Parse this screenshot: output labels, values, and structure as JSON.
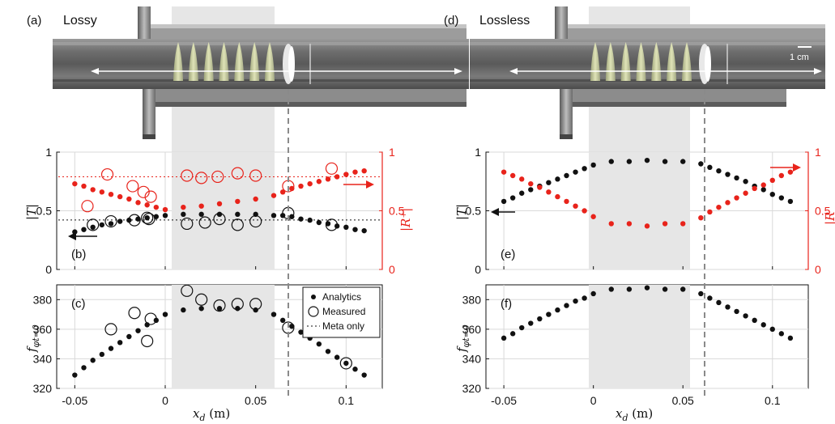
{
  "colors": {
    "black": "#111111",
    "red": "#e8231b",
    "shade": "#e6e6e6",
    "grid": "#d9d9d9"
  },
  "labels": {
    "a": "(a)",
    "b": "(b)",
    "c": "(c)",
    "d": "(d)",
    "e": "(e)",
    "f": "(f)",
    "lossy": "Lossy",
    "lossless": "Lossless",
    "scale_bar": "1 cm"
  },
  "axes": {
    "xlabel": "x_d (m)",
    "T": "|T|",
    "R_lossy": "|R⁺|",
    "R_lossless": "|R",
    "f": "f_{φt=0}"
  },
  "legend": {
    "analytics": "Analytics",
    "measured": "Measured",
    "meta": "Meta only"
  },
  "chart_data": [
    {
      "panel": "(b)",
      "type": "scatter",
      "xlim": [
        -0.06,
        0.12
      ],
      "ylim_left": [
        0,
        1
      ],
      "ylim_right": [
        0,
        1
      ],
      "xticks": [
        -0.05,
        0,
        0.05,
        0.1
      ],
      "yticks_left": [
        0,
        0.5,
        1
      ],
      "yticks_right": [
        0,
        0.5,
        1
      ],
      "shaded_x": [
        0,
        0.06
      ],
      "dashed_x": 0.068,
      "meta_T": 0.42,
      "meta_R": 0.79,
      "series": [
        {
          "name": "Analytics",
          "axis": "left",
          "color": "#111111",
          "x": [
            -0.05,
            -0.045,
            -0.04,
            -0.035,
            -0.03,
            -0.025,
            -0.02,
            -0.015,
            -0.01,
            -0.005,
            0,
            0.01,
            0.02,
            0.03,
            0.04,
            0.05,
            0.06,
            0.065,
            0.07,
            0.075,
            0.08,
            0.085,
            0.09,
            0.095,
            0.1,
            0.105,
            0.11
          ],
          "y": [
            0.32,
            0.34,
            0.36,
            0.38,
            0.39,
            0.41,
            0.42,
            0.43,
            0.44,
            0.45,
            0.46,
            0.47,
            0.47,
            0.47,
            0.47,
            0.47,
            0.46,
            0.46,
            0.45,
            0.43,
            0.42,
            0.4,
            0.39,
            0.37,
            0.36,
            0.34,
            0.33
          ]
        },
        {
          "name": "Analytics",
          "axis": "right",
          "color": "#e8231b",
          "x": [
            -0.05,
            -0.045,
            -0.04,
            -0.035,
            -0.03,
            -0.025,
            -0.02,
            -0.015,
            -0.01,
            -0.005,
            0,
            0.01,
            0.02,
            0.03,
            0.04,
            0.05,
            0.06,
            0.065,
            0.07,
            0.075,
            0.08,
            0.085,
            0.09,
            0.095,
            0.1,
            0.105,
            0.11
          ],
          "y": [
            0.73,
            0.71,
            0.68,
            0.66,
            0.64,
            0.62,
            0.6,
            0.57,
            0.55,
            0.53,
            0.51,
            0.53,
            0.54,
            0.56,
            0.58,
            0.6,
            0.63,
            0.66,
            0.69,
            0.71,
            0.73,
            0.75,
            0.77,
            0.79,
            0.81,
            0.83,
            0.84
          ]
        },
        {
          "name": "Measured",
          "axis": "left",
          "color": "#111111",
          "x": [
            -0.04,
            -0.03,
            -0.017,
            -0.01,
            -0.009,
            0.012,
            0.022,
            0.03,
            0.04,
            0.05,
            0.068,
            0.092
          ],
          "y": [
            0.38,
            0.41,
            0.42,
            0.44,
            0.43,
            0.39,
            0.4,
            0.43,
            0.38,
            0.41,
            0.48,
            0.38
          ]
        },
        {
          "name": "Measured",
          "axis": "right",
          "color": "#e8231b",
          "x": [
            -0.043,
            -0.032,
            -0.018,
            -0.012,
            -0.008,
            0.012,
            0.02,
            0.029,
            0.04,
            0.05,
            0.068,
            0.092
          ],
          "y": [
            0.54,
            0.81,
            0.71,
            0.66,
            0.62,
            0.8,
            0.78,
            0.79,
            0.82,
            0.8,
            0.71,
            0.86
          ]
        }
      ]
    },
    {
      "panel": "(c)",
      "type": "scatter",
      "xlim": [
        -0.06,
        0.12
      ],
      "ylim": [
        320,
        390
      ],
      "xticks": [
        -0.05,
        0,
        0.05,
        0.1
      ],
      "yticks": [
        320,
        340,
        360,
        380
      ],
      "xticklabels": [
        "-0.05",
        "0",
        "0.05",
        "0.1"
      ],
      "shaded_x": [
        0,
        0.06
      ],
      "dashed_x": 0.068,
      "series": [
        {
          "name": "Analytics",
          "color": "#111111",
          "x": [
            -0.05,
            -0.045,
            -0.04,
            -0.035,
            -0.03,
            -0.025,
            -0.02,
            -0.015,
            -0.01,
            -0.005,
            0,
            0.01,
            0.02,
            0.03,
            0.04,
            0.05,
            0.06,
            0.065,
            0.07,
            0.075,
            0.08,
            0.085,
            0.09,
            0.095,
            0.1,
            0.105,
            0.11
          ],
          "y": [
            329,
            334,
            339,
            343,
            347,
            351,
            355,
            359,
            363,
            366,
            370,
            373,
            374,
            374,
            374,
            373,
            370,
            366,
            362,
            358,
            354,
            350,
            345,
            341,
            337,
            333,
            329
          ]
        },
        {
          "name": "Measured",
          "color": "#111111",
          "x": [
            -0.03,
            -0.017,
            -0.01,
            -0.008,
            0.012,
            0.02,
            0.03,
            0.04,
            0.05,
            0.068,
            0.1
          ],
          "y": [
            360,
            371,
            352,
            367,
            386,
            380,
            376,
            377,
            377,
            361,
            337
          ]
        }
      ]
    },
    {
      "panel": "(e)",
      "type": "scatter",
      "xlim": [
        -0.06,
        0.12
      ],
      "ylim_left": [
        0,
        1
      ],
      "ylim_right": [
        0,
        1
      ],
      "xticks": [
        -0.05,
        0,
        0.05,
        0.1
      ],
      "yticks_left": [
        0,
        0.5,
        1
      ],
      "yticks_right": [
        0,
        0.5,
        1
      ],
      "shaded_x": [
        0,
        0.06
      ],
      "dashed_x": 0.068,
      "series": [
        {
          "name": "Analytics",
          "axis": "left",
          "color": "#111111",
          "x": [
            -0.05,
            -0.045,
            -0.04,
            -0.035,
            -0.03,
            -0.025,
            -0.02,
            -0.015,
            -0.01,
            -0.005,
            0,
            0.01,
            0.02,
            0.03,
            0.04,
            0.05,
            0.06,
            0.065,
            0.07,
            0.075,
            0.08,
            0.085,
            0.09,
            0.095,
            0.1,
            0.105,
            0.11
          ],
          "y": [
            0.58,
            0.61,
            0.65,
            0.68,
            0.71,
            0.74,
            0.77,
            0.8,
            0.83,
            0.86,
            0.89,
            0.92,
            0.92,
            0.93,
            0.92,
            0.92,
            0.9,
            0.87,
            0.84,
            0.81,
            0.78,
            0.75,
            0.71,
            0.68,
            0.64,
            0.61,
            0.58
          ]
        },
        {
          "name": "Analytics",
          "axis": "right",
          "color": "#e8231b",
          "x": [
            -0.05,
            -0.045,
            -0.04,
            -0.035,
            -0.03,
            -0.025,
            -0.02,
            -0.015,
            -0.01,
            -0.005,
            0,
            0.01,
            0.02,
            0.03,
            0.04,
            0.05,
            0.06,
            0.065,
            0.07,
            0.075,
            0.08,
            0.085,
            0.09,
            0.095,
            0.1,
            0.105,
            0.11
          ],
          "y": [
            0.83,
            0.8,
            0.77,
            0.73,
            0.7,
            0.66,
            0.62,
            0.58,
            0.54,
            0.5,
            0.45,
            0.39,
            0.39,
            0.37,
            0.39,
            0.39,
            0.44,
            0.49,
            0.53,
            0.57,
            0.61,
            0.65,
            0.69,
            0.72,
            0.76,
            0.8,
            0.83
          ]
        }
      ]
    },
    {
      "panel": "(f)",
      "type": "scatter",
      "xlim": [
        -0.06,
        0.12
      ],
      "ylim": [
        320,
        390
      ],
      "xticks": [
        -0.05,
        0,
        0.05,
        0.1
      ],
      "yticks": [
        320,
        340,
        360,
        380
      ],
      "xticklabels": [
        "-0.05",
        "0",
        "0.05",
        "0.1"
      ],
      "shaded_x": [
        0,
        0.06
      ],
      "dashed_x": 0.068,
      "series": [
        {
          "name": "Analytics",
          "color": "#111111",
          "x": [
            -0.05,
            -0.045,
            -0.04,
            -0.035,
            -0.03,
            -0.025,
            -0.02,
            -0.015,
            -0.01,
            -0.005,
            0,
            0.01,
            0.02,
            0.03,
            0.04,
            0.05,
            0.06,
            0.065,
            0.07,
            0.075,
            0.08,
            0.085,
            0.09,
            0.095,
            0.1,
            0.105,
            0.11
          ],
          "y": [
            354,
            357,
            361,
            364,
            367,
            370,
            373,
            376,
            379,
            381,
            384,
            387,
            387,
            388,
            387,
            387,
            384,
            381,
            378,
            375,
            372,
            369,
            366,
            363,
            360,
            357,
            354
          ]
        }
      ]
    }
  ]
}
